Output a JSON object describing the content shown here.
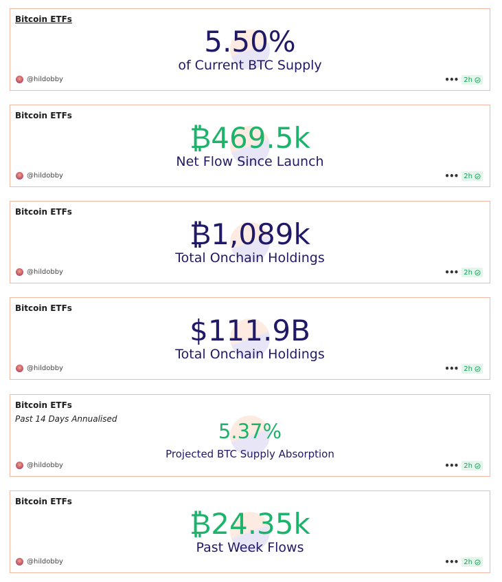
{
  "cards": [
    {
      "title": "Bitcoin ETFs",
      "value": "5.50%",
      "label": "of Current BTC Supply",
      "author": "@hildobby",
      "age": "2h"
    },
    {
      "title": "Bitcoin ETFs",
      "value": "₿469.5k",
      "label": "Net Flow Since Launch",
      "author": "@hildobby",
      "age": "2h"
    },
    {
      "title": "Bitcoin ETFs",
      "value": "₿1,089k",
      "label": "Total Onchain Holdings",
      "author": "@hildobby",
      "age": "2h"
    },
    {
      "title": "Bitcoin ETFs",
      "value": "$111.9B",
      "label": "Total Onchain Holdings",
      "author": "@hildobby",
      "age": "2h"
    },
    {
      "title": "Bitcoin ETFs",
      "subtitle": "Past 14 Days Annualised",
      "value": "5.37%",
      "label": "Projected BTC Supply Absorption",
      "author": "@hildobby",
      "age": "2h"
    },
    {
      "title": "Bitcoin ETFs",
      "value": "₿24.35k",
      "label": "Past Week Flows",
      "author": "@hildobby",
      "age": "2h"
    }
  ],
  "menu_icon": "more-dots-icon",
  "status_icon": "check-circle-icon",
  "colors": {
    "border": "#f3b8a4",
    "navy": "#1f1966",
    "green": "#1db36b",
    "badge_bg": "#e4f6ec",
    "badge_text": "#1a9e5b"
  }
}
